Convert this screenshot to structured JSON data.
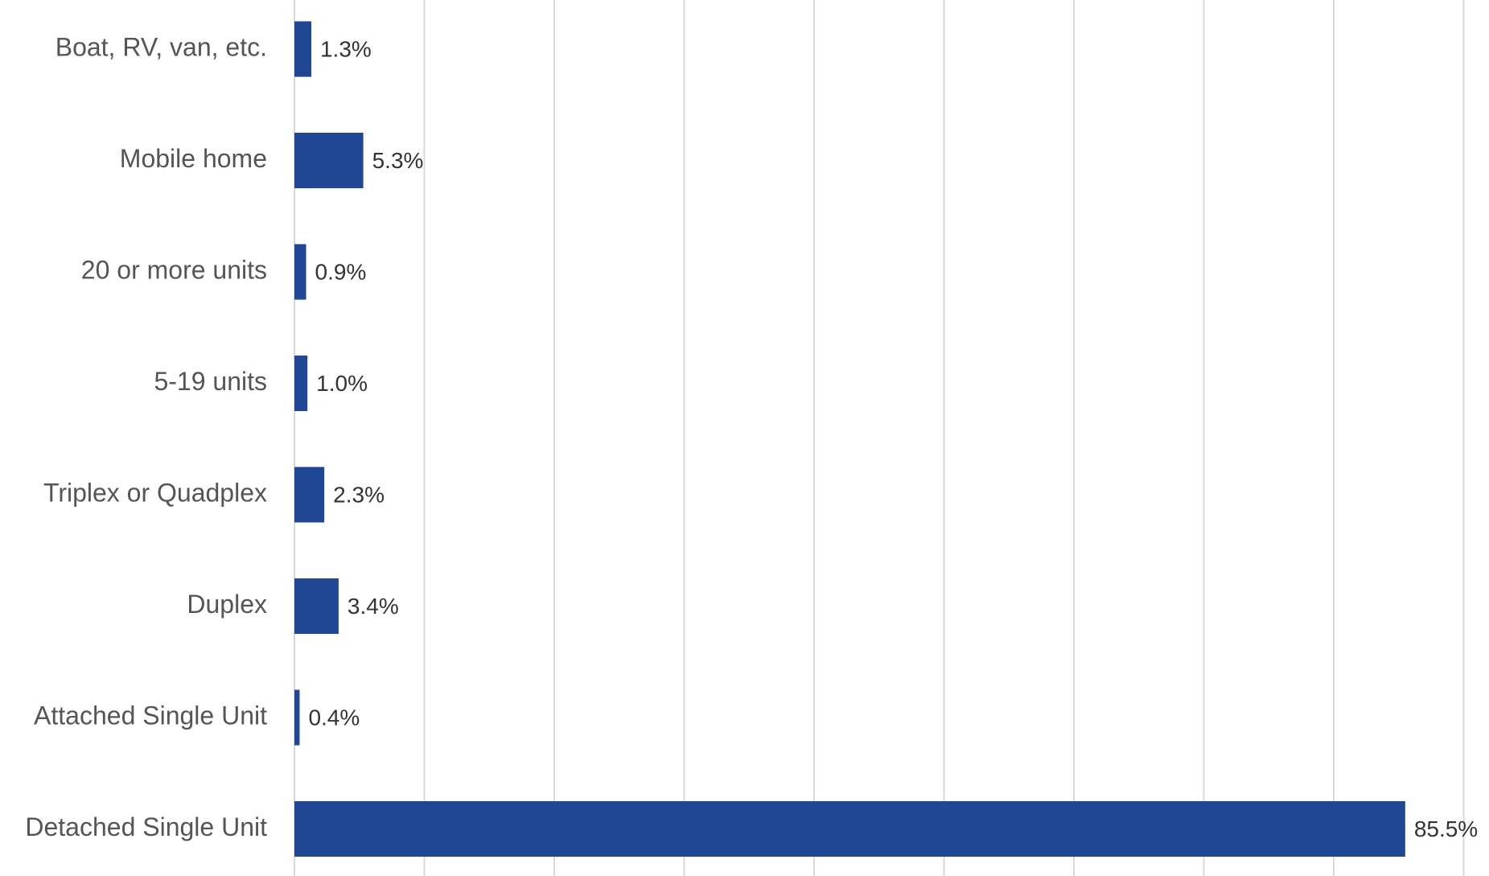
{
  "chart_data": {
    "type": "bar",
    "orientation": "horizontal",
    "categories": [
      "Boat, RV, van, etc.",
      "Mobile home",
      "20 or more units",
      "5-19 units",
      "Triplex or Quadplex",
      "Duplex",
      "Attached Single Unit",
      "Detached Single Unit"
    ],
    "values": [
      1.3,
      5.3,
      0.9,
      1.0,
      2.3,
      3.4,
      0.4,
      85.5
    ],
    "data_labels": [
      "1.3%",
      "5.3%",
      "0.9%",
      "1.0%",
      "2.3%",
      "3.4%",
      "0.4%",
      "85.5%"
    ],
    "title": "",
    "xlabel": "",
    "ylabel": "",
    "xlim": [
      0,
      90
    ],
    "grid_step": 10,
    "grid": true,
    "legend": "none",
    "bar_color": "#1f4796",
    "grid_color": "#d9d9d9"
  }
}
